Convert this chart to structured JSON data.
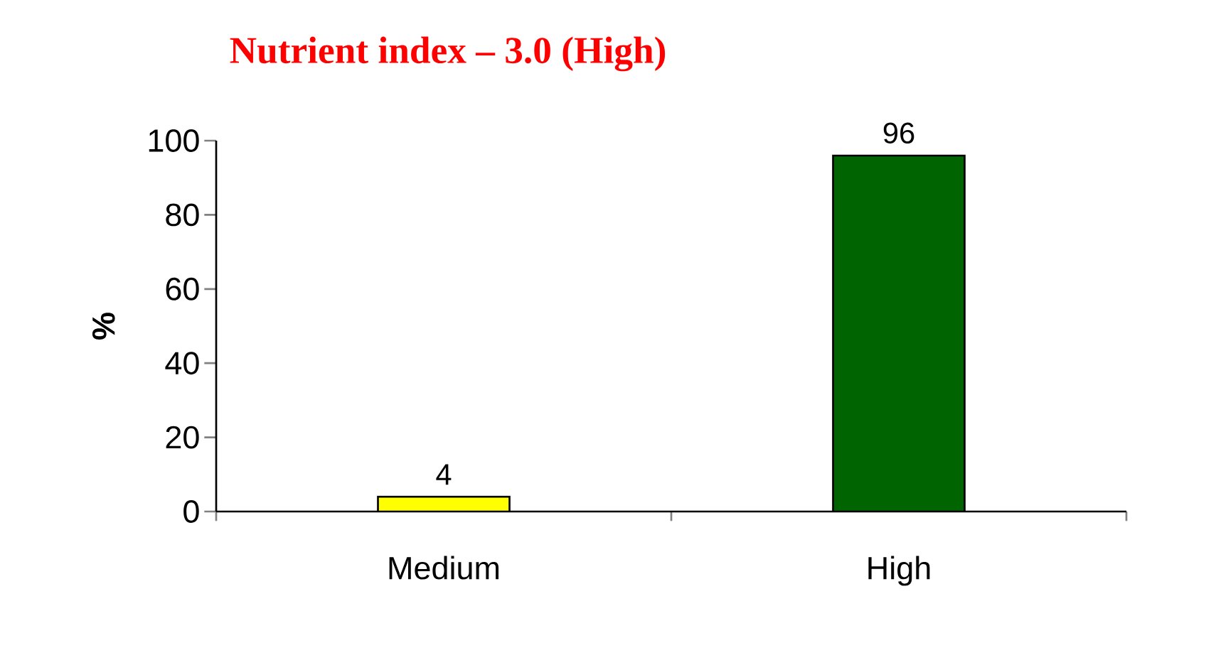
{
  "chart_data": {
    "type": "bar",
    "title": "Nutrient index – 3.0 (High)",
    "ylabel": "%",
    "categories": [
      "Medium",
      "High"
    ],
    "values": [
      4,
      96
    ],
    "colors": [
      "#ffff00",
      "#006400"
    ],
    "ylim": [
      0,
      100
    ],
    "yticks": [
      0,
      20,
      40,
      60,
      80,
      100
    ],
    "data_labels": true,
    "grid": false
  }
}
